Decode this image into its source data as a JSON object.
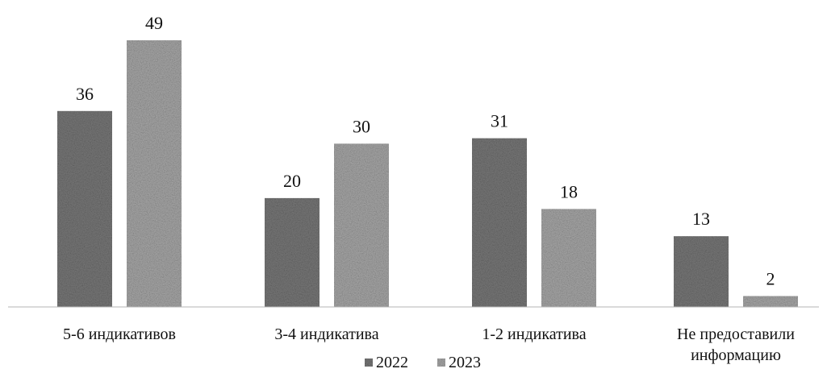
{
  "chart_data": {
    "type": "bar",
    "categories": [
      [
        "5-6 индикативов"
      ],
      [
        "3-4 индикатива"
      ],
      [
        "1-2 индикатива"
      ],
      [
        "Не предоставили",
        "информацию"
      ]
    ],
    "series": [
      {
        "name": "2022",
        "values": [
          36,
          20,
          31,
          13
        ],
        "color": "#7a7a7a"
      },
      {
        "name": "2023",
        "values": [
          49,
          30,
          18,
          2
        ],
        "color": "#aaaaaa"
      }
    ],
    "ylim": [
      0,
      49
    ],
    "grid": false,
    "legend": "bottom-center",
    "title": "",
    "xlabel": "",
    "ylabel": ""
  }
}
